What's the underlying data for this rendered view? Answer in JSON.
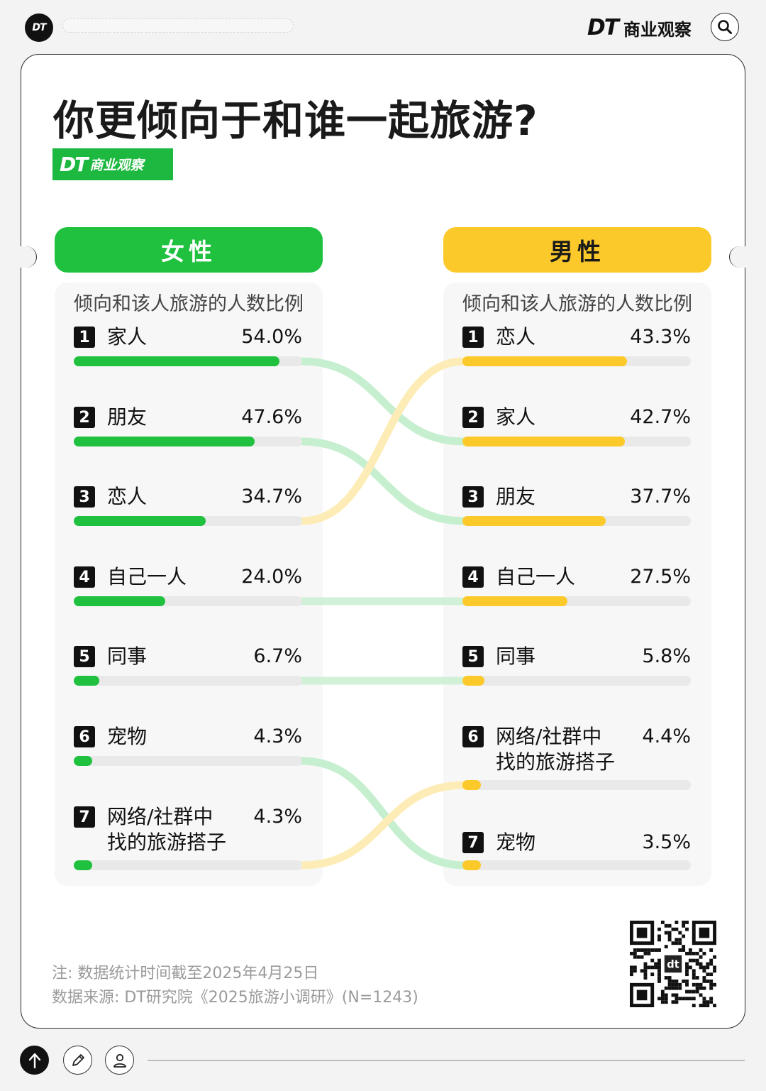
{
  "topbar": {
    "logo_text": "DT",
    "brand_dt": "DT",
    "brand_cn": "商业观察"
  },
  "title": "你更倾向于和谁一起旅游?",
  "badge": {
    "dt": "DT",
    "cn": "商业观察"
  },
  "colors": {
    "female": "#1fc13f",
    "male": "#fcc92b",
    "female_flow": "#c6efcf",
    "male_flow": "#fdecb6"
  },
  "chart_data": [
    {
      "type": "bar",
      "title": "女性",
      "subtitle": "倾向和该人旅游的人数比例",
      "unit": "%",
      "categories": [
        "家人",
        "朋友",
        "恋人",
        "自己一人",
        "同事",
        "宠物",
        "网络/社群中找的旅游搭子"
      ],
      "display_labels": [
        "家人",
        "朋友",
        "恋人",
        "自己一人",
        "同事",
        "宠物",
        [
          "网络/社群中",
          "找的旅游搭子"
        ]
      ],
      "ranks": [
        "1",
        "2",
        "3",
        "4",
        "5",
        "6",
        "7"
      ],
      "values": [
        54.0,
        47.6,
        34.7,
        24.0,
        6.7,
        4.3,
        4.3
      ],
      "value_labels": [
        "54.0%",
        "47.6%",
        "34.7%",
        "24.0%",
        "6.7%",
        "4.3%",
        "4.3%"
      ]
    },
    {
      "type": "bar",
      "title": "男性",
      "subtitle": "倾向和该人旅游的人数比例",
      "unit": "%",
      "categories": [
        "恋人",
        "家人",
        "朋友",
        "自己一人",
        "同事",
        "网络/社群中找的旅游搭子",
        "宠物"
      ],
      "display_labels": [
        "恋人",
        "家人",
        "朋友",
        "自己一人",
        "同事",
        [
          "网络/社群中",
          "找的旅游搭子"
        ],
        "宠物"
      ],
      "ranks": [
        "1",
        "2",
        "3",
        "4",
        "5",
        "6",
        "7"
      ],
      "values": [
        43.3,
        42.7,
        37.7,
        27.5,
        5.8,
        4.4,
        3.5
      ],
      "value_labels": [
        "43.3%",
        "42.7%",
        "37.7%",
        "27.5%",
        "5.8%",
        "4.4%",
        "3.5%"
      ]
    }
  ],
  "notes": {
    "note": "注: 数据统计时间截至2025年4月25日",
    "source": "数据来源: DT研究院《2025旅游小调研》(N=1243)"
  },
  "qr": {
    "center_text": "dt"
  }
}
